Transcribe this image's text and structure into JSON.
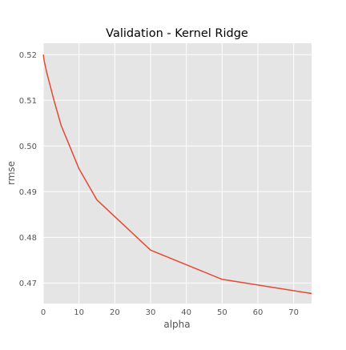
{
  "chart_data": {
    "type": "line",
    "title": "Validation - Kernel Ridge",
    "xlabel": "alpha",
    "ylabel": "rmse",
    "xlim": [
      0,
      75
    ],
    "ylim": [
      0.4655,
      0.5225
    ],
    "x_ticks": [
      0,
      10,
      20,
      30,
      40,
      50,
      60,
      70
    ],
    "x_tick_labels": [
      "0",
      "10",
      "20",
      "30",
      "40",
      "50",
      "60",
      "70"
    ],
    "y_ticks": [
      0.47,
      0.48,
      0.49,
      0.5,
      0.51,
      0.52
    ],
    "y_tick_labels": [
      "0.47",
      "0.48",
      "0.49",
      "0.50",
      "0.51",
      "0.52"
    ],
    "grid": true,
    "legend": "none",
    "colors": {
      "background": "#e5e5e5",
      "grid": "#ffffff",
      "line": "#e24a33"
    },
    "series": [
      {
        "x": [
          0.05,
          0.1,
          0.3,
          1,
          3,
          5,
          10,
          15,
          30,
          50,
          75
        ],
        "y": [
          0.52,
          0.5195,
          0.5185,
          0.516,
          0.51,
          0.5045,
          0.495,
          0.4882,
          0.4772,
          0.4708,
          0.4677
        ]
      }
    ]
  }
}
